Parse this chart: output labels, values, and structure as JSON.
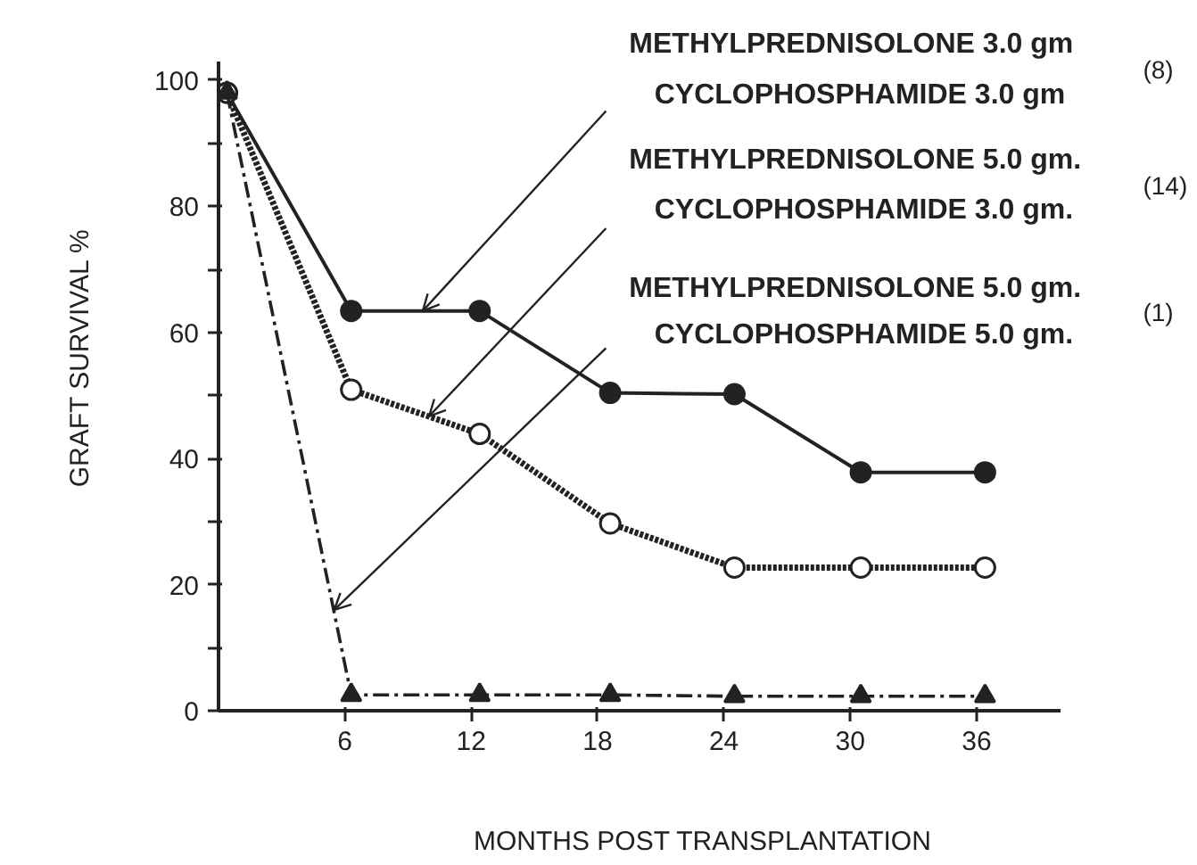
{
  "chart_data": {
    "type": "line",
    "xlabel": "MONTHS POST TRANSPLANTATION",
    "ylabel": "GRAFT SURVIVAL %",
    "xlim": [
      0,
      40
    ],
    "ylim": [
      0,
      103
    ],
    "xticks": [
      6,
      12,
      18,
      24,
      30,
      36
    ],
    "yticks": [
      0,
      {
        "value": 10,
        "label": null
      },
      20,
      {
        "value": 30,
        "label": null
      },
      40,
      {
        "value": 50,
        "label": null
      },
      60,
      {
        "value": 70,
        "label": null
      },
      80,
      {
        "value": 90,
        "label": null
      },
      100
    ],
    "grid": false,
    "series": [
      {
        "color": "#222222",
        "marker": "circle",
        "line_style": "solid",
        "x": [
          0.4,
          6.3,
          12.4,
          18.6,
          24.5,
          30.5,
          36.4
        ],
        "values": [
          98,
          63.4,
          63.4,
          50.4,
          50.2,
          37.8,
          37.8
        ]
      },
      {
        "color": "#222222",
        "marker": "circle_open",
        "line_style": "dotted",
        "x": [
          0.4,
          6.3,
          12.4,
          18.6,
          24.5,
          30.5,
          36.4
        ],
        "values": [
          98,
          50.9,
          43.9,
          29.7,
          22.7,
          22.7,
          22.7
        ]
      },
      {
        "color": "#222222",
        "marker": "triangle",
        "line_style": "dashdot",
        "x": [
          0.4,
          6.3,
          12.4,
          18.6,
          24.5,
          30.5,
          36.4
        ],
        "values": [
          98,
          2.5,
          2.5,
          2.5,
          2.3,
          2.3,
          2.3
        ]
      }
    ],
    "annotations": [
      {
        "text": "METHYLPREDNISOLONE 3.0 gm\nCYCLOPHOSPHAMIDE 3.0 gm",
        "x": 9.7,
        "y": 63.4
      },
      {
        "text": "METHYLPREDNISOLONE 5.0 gm.\nCYCLOPHOSPHAMIDE 3.0 gm.",
        "x": 10,
        "y": 46.7
      },
      {
        "text": "METHYLPREDNISOLONE 5.0 gm.\nCYCLOPHOSPHAMIDE 5.0 gm.",
        "x": 5.5,
        "y": 16
      },
      "(8)",
      "(14)",
      "(1)"
    ]
  }
}
